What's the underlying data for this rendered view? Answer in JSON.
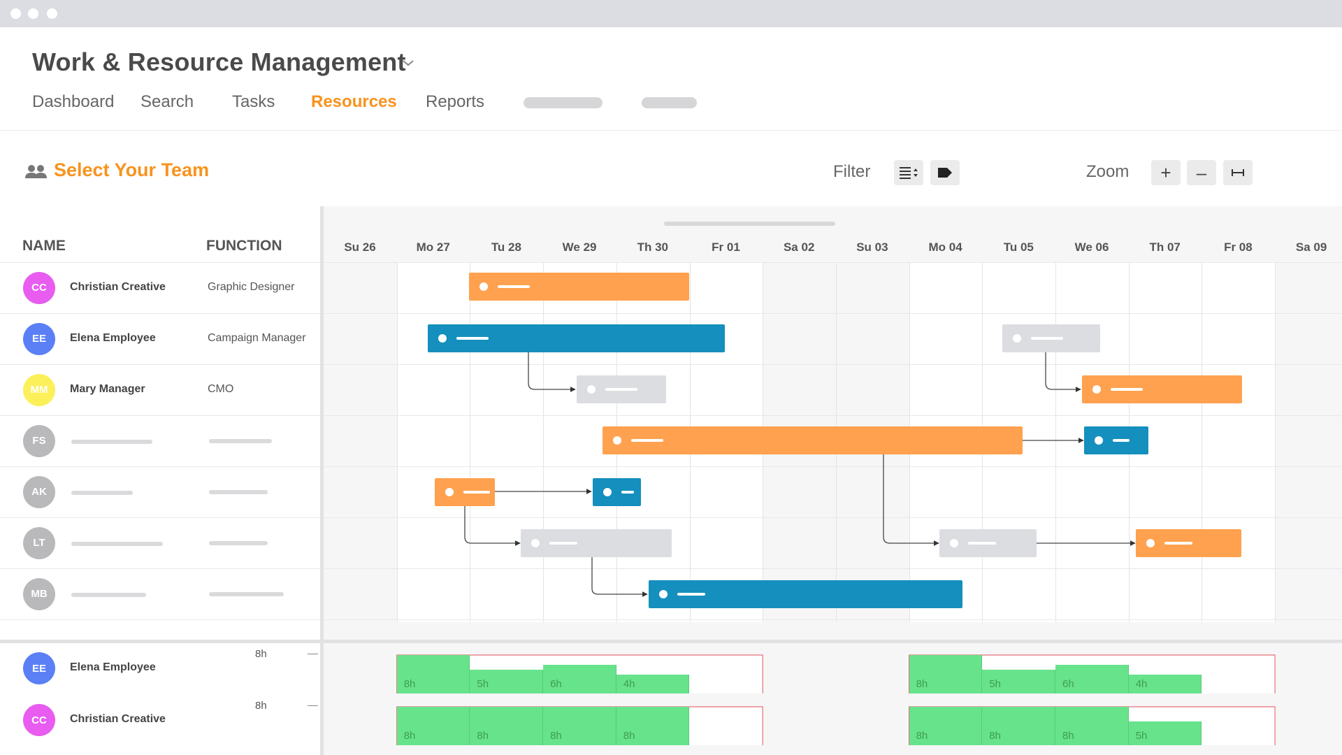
{
  "app": {
    "title": "Work & Resource Management"
  },
  "nav": {
    "items": [
      {
        "label": "Dashboard",
        "active": false
      },
      {
        "label": "Search",
        "active": false
      },
      {
        "label": "Tasks",
        "active": false
      },
      {
        "label": "Resources",
        "active": true
      },
      {
        "label": "Reports",
        "active": false
      }
    ]
  },
  "toolbar": {
    "team_title": "Select Your Team",
    "filter_label": "Filter",
    "zoom_label": "Zoom",
    "zoom_in": "+",
    "zoom_out": "–",
    "fit": "⟼"
  },
  "table": {
    "col_name": "NAME",
    "col_function": "FUNCTION"
  },
  "days": [
    "Su 26",
    "Mo 27",
    "Tu 28",
    "We 29",
    "Th 30",
    "Fr 01",
    "Sa 02",
    "Su 03",
    "Mo 04",
    "Tu 05",
    "We 06",
    "Th 07",
    "Fr 08",
    "Sa 09"
  ],
  "people": [
    {
      "initials": "CC",
      "name": "Christian Creative",
      "function": "Graphic Designer",
      "color": "#e85cf0"
    },
    {
      "initials": "EE",
      "name": "Elena Employee",
      "function": "Campaign Manager",
      "color": "#5b7ff5"
    },
    {
      "initials": "MM",
      "name": "Mary Manager",
      "function": "CMO",
      "color": "#fbf05a"
    },
    {
      "initials": "FS",
      "name": "",
      "function": "",
      "color": "#b9b9bb"
    },
    {
      "initials": "AK",
      "name": "",
      "function": "",
      "color": "#b9b9bb"
    },
    {
      "initials": "LT",
      "name": "",
      "function": "",
      "color": "#b9b9bb"
    },
    {
      "initials": "MB",
      "name": "",
      "function": "",
      "color": "#b9b9bb"
    }
  ],
  "capacity": [
    {
      "initials": "EE",
      "name": "Elena Employee",
      "color": "#5b7ff5",
      "max": "8h",
      "week1": [
        "8h",
        "5h",
        "6h",
        "4h"
      ],
      "week2": [
        "8h",
        "5h",
        "6h",
        "4h"
      ]
    },
    {
      "initials": "CC",
      "name": "Christian Creative",
      "color": "#e85cf0",
      "max": "8h",
      "week1": [
        "8h",
        "8h",
        "8h",
        "8h"
      ],
      "week2": [
        "8h",
        "8h",
        "8h",
        "5h"
      ]
    }
  ],
  "colors": {
    "accent": "#f7931e",
    "bar_orange": "#ffa14e",
    "bar_blue": "#158fbd",
    "bar_gray": "#dcdde1",
    "capacity_green": "#67e38b",
    "overload_red": "#e8707a"
  }
}
